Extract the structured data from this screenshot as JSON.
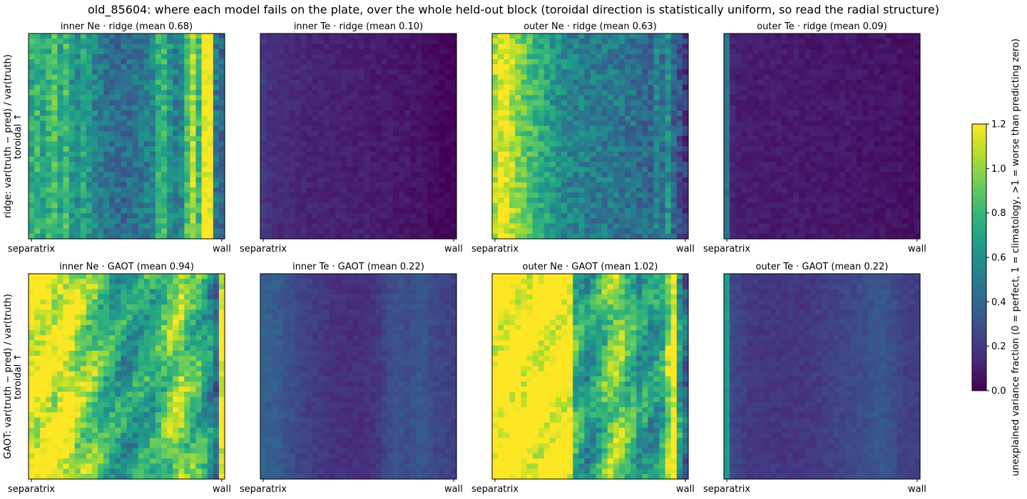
{
  "figure_title": "old_85604: where each model fails on the plate, over the whole held-out block (toroidal direction is statistically uniform, so read the radial structure)",
  "colorbar": {
    "label": "unexplained variance fraction (0 = perfect, 1 = climatology, >1 = worse than predicting zero)",
    "ticks": [
      "0.0",
      "0.2",
      "0.4",
      "0.6",
      "0.8",
      "1.0",
      "1.2"
    ],
    "vmin": 0.0,
    "vmax": 1.2,
    "colormap": "viridis"
  },
  "chart_data": [
    {
      "type": "heatmap",
      "title": "inner Ne · ridge  (mean 0.68)",
      "xticklabels": [
        "separatrix",
        "wall"
      ],
      "ylabel": "ridge: var(truth − pred) / var(truth)\ntoroidal ↑",
      "mean": 0.68,
      "radial_profile": [
        0.75,
        0.8,
        0.7,
        0.78,
        0.85,
        0.7,
        0.82,
        0.66,
        0.6,
        0.72,
        0.62,
        0.55,
        0.5,
        0.46,
        0.44,
        0.42,
        0.42,
        0.44,
        0.46,
        0.48,
        0.52,
        0.56,
        0.74,
        0.78,
        0.62,
        0.52,
        0.55,
        0.85,
        1.05,
        0.8,
        1.22,
        1.22,
        0.48,
        0.38
      ]
    },
    {
      "type": "heatmap",
      "title": "inner Te · ridge  (mean 0.10)",
      "xticklabels": [
        "separatrix",
        "wall"
      ],
      "ylabel": "",
      "mean": 0.1,
      "radial_profile": [
        0.2,
        0.17,
        0.16,
        0.15,
        0.15,
        0.14,
        0.14,
        0.13,
        0.12,
        0.12,
        0.12,
        0.12,
        0.11,
        0.11,
        0.11,
        0.1,
        0.1,
        0.1,
        0.1,
        0.09,
        0.09,
        0.09,
        0.09,
        0.08,
        0.08,
        0.08,
        0.07,
        0.07,
        0.06,
        0.04,
        0.03,
        0.02,
        0.02,
        0.01
      ]
    },
    {
      "type": "heatmap",
      "title": "outer Ne · ridge  (mean 0.63)",
      "xticklabels": [
        "separatrix",
        "wall"
      ],
      "ylabel": "",
      "mean": 0.63,
      "radial_profile": [
        1.05,
        1.15,
        1.18,
        1.05,
        0.98,
        0.92,
        0.85,
        0.8,
        0.75,
        0.7,
        0.65,
        0.6,
        0.57,
        0.55,
        0.53,
        0.52,
        0.51,
        0.5,
        0.5,
        0.5,
        0.5,
        0.48,
        0.47,
        0.46,
        0.45,
        0.44,
        0.42,
        0.4,
        0.52,
        0.45,
        0.6,
        0.38,
        0.3,
        0.2
      ]
    },
    {
      "type": "heatmap",
      "title": "outer Te · ridge  (mean 0.09)",
      "xticklabels": [
        "separatrix",
        "wall"
      ],
      "ylabel": "",
      "mean": 0.09,
      "radial_profile": [
        0.45,
        0.12,
        0.1,
        0.1,
        0.1,
        0.09,
        0.09,
        0.09,
        0.09,
        0.09,
        0.09,
        0.09,
        0.09,
        0.08,
        0.08,
        0.08,
        0.08,
        0.08,
        0.08,
        0.08,
        0.08,
        0.08,
        0.08,
        0.07,
        0.07,
        0.07,
        0.07,
        0.07,
        0.07,
        0.06,
        0.06,
        0.05,
        0.05,
        0.05
      ]
    },
    {
      "type": "heatmap",
      "title": "inner Ne · GAOT  (mean 0.94)",
      "xticklabels": [
        "separatrix",
        "wall"
      ],
      "ylabel": "GAOT: var(truth − pred) / var(truth)\ntoroidal ↑",
      "mean": 0.94,
      "radial_profile": [
        1.2,
        1.15,
        1.2,
        1.2,
        1.1,
        1.2,
        1.2,
        1.15,
        1.05,
        1.0,
        0.95,
        0.92,
        0.82,
        0.78,
        0.72,
        0.7,
        0.66,
        0.64,
        0.66,
        0.7,
        0.72,
        0.72,
        0.78,
        0.85,
        0.95,
        1.0,
        1.05,
        0.9,
        0.85,
        0.8,
        0.72,
        0.6,
        0.45,
        1.2
      ]
    },
    {
      "type": "heatmap",
      "title": "inner Te · GAOT  (mean 0.22)",
      "xticklabels": [
        "separatrix",
        "wall"
      ],
      "ylabel": "",
      "mean": 0.22,
      "radial_profile": [
        0.38,
        0.36,
        0.36,
        0.34,
        0.3,
        0.28,
        0.26,
        0.24,
        0.22,
        0.21,
        0.2,
        0.19,
        0.18,
        0.17,
        0.17,
        0.16,
        0.16,
        0.16,
        0.17,
        0.18,
        0.2,
        0.24,
        0.28,
        0.3,
        0.3,
        0.28,
        0.3,
        0.32,
        0.32,
        0.28,
        0.26,
        0.25,
        0.24,
        0.22
      ]
    },
    {
      "type": "heatmap",
      "title": "outer Ne · GAOT  (mean 1.02)",
      "xticklabels": [
        "separatrix",
        "wall"
      ],
      "ylabel": "",
      "mean": 1.02,
      "radial_profile": [
        1.25,
        1.25,
        1.25,
        1.25,
        1.25,
        1.25,
        1.25,
        1.25,
        1.25,
        1.25,
        1.25,
        1.25,
        1.25,
        1.25,
        0.8,
        0.72,
        0.6,
        0.66,
        0.72,
        0.85,
        0.95,
        1.0,
        0.95,
        0.85,
        0.8,
        0.65,
        0.7,
        0.62,
        0.66,
        0.72,
        1.0,
        1.25,
        0.65,
        0.45
      ]
    },
    {
      "type": "heatmap",
      "title": "outer Te · GAOT  (mean 0.22)",
      "xticklabels": [
        "separatrix",
        "wall"
      ],
      "ylabel": "",
      "mean": 0.22,
      "radial_profile": [
        0.65,
        0.26,
        0.24,
        0.22,
        0.2,
        0.2,
        0.19,
        0.19,
        0.19,
        0.19,
        0.19,
        0.19,
        0.19,
        0.19,
        0.2,
        0.2,
        0.21,
        0.22,
        0.23,
        0.24,
        0.25,
        0.26,
        0.27,
        0.28,
        0.28,
        0.3,
        0.32,
        0.32,
        0.3,
        0.28,
        0.25,
        0.23,
        0.22,
        0.22
      ]
    }
  ]
}
